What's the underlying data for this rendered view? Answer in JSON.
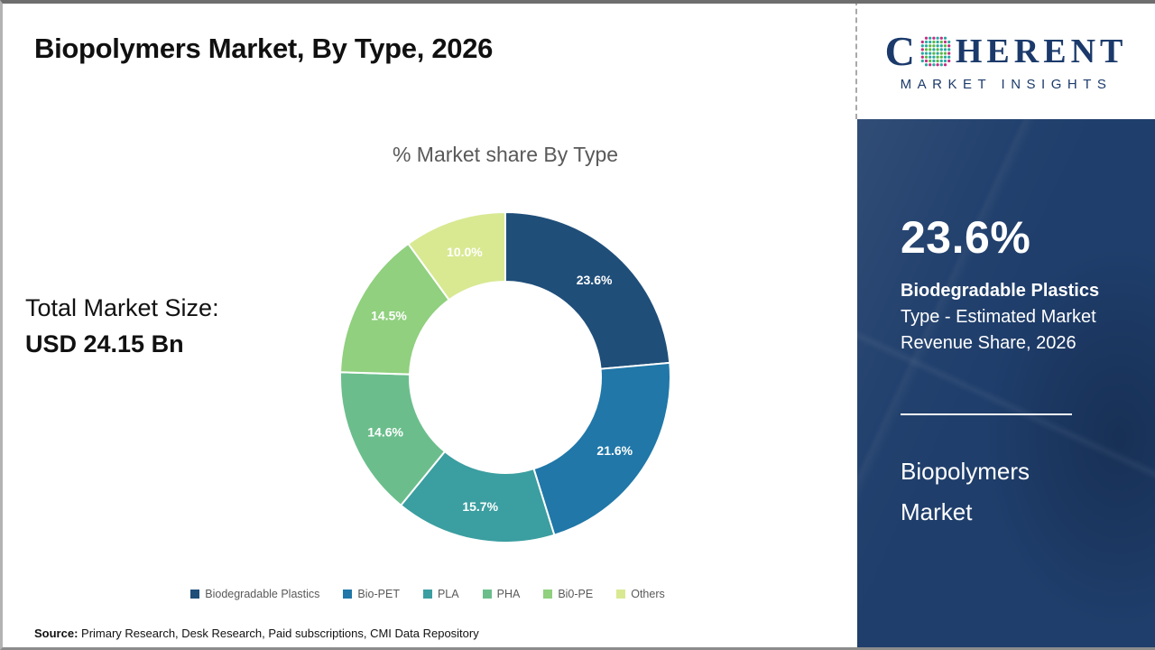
{
  "slide": {
    "title": "Biopolymers Market, By Type, 2026",
    "source_label": "Source:",
    "source_text": " Primary Research, Desk Research, Paid subscriptions, CMI Data Repository"
  },
  "logo": {
    "brand_first_letter": "C",
    "brand_rest": "HERENT",
    "subtitle": "MARKET INSIGHTS",
    "globe_colors": [
      "#2ba8a0",
      "#58b947",
      "#c52e83"
    ],
    "text_color": "#1b3a6b"
  },
  "left_panel": {
    "total_label": "Total Market Size:",
    "total_value": "USD 24.15 Bn"
  },
  "chart_data": {
    "type": "pie",
    "subtype": "donut",
    "title": "% Market share By Type",
    "categories": [
      "Biodegradable Plastics",
      "Bio-PET",
      "PLA",
      "PHA",
      "Bi0-PE",
      "Others"
    ],
    "values": [
      23.6,
      21.6,
      15.7,
      14.6,
      14.5,
      10.0
    ],
    "labels": [
      "23.6%",
      "21.6%",
      "15.7%",
      "14.6%",
      "14.5%",
      "10.0%"
    ],
    "colors": [
      "#1f4e79",
      "#2077a8",
      "#3b9ea0",
      "#6bbe8c",
      "#90d07e",
      "#d8e992"
    ],
    "start_angle_deg": 0,
    "direction": "clockwise",
    "legend_position": "bottom",
    "label_color": "#ffffff"
  },
  "sidebar": {
    "stat_value": "23.6%",
    "stat_line_bold": "Biodegradable Plastics",
    "stat_line2": "Type - Estimated Market",
    "stat_line3": "Revenue Share, 2026",
    "panel_title_line1": "Biopolymers",
    "panel_title_line2": "Market",
    "bg_color": "#1f3e6b"
  }
}
